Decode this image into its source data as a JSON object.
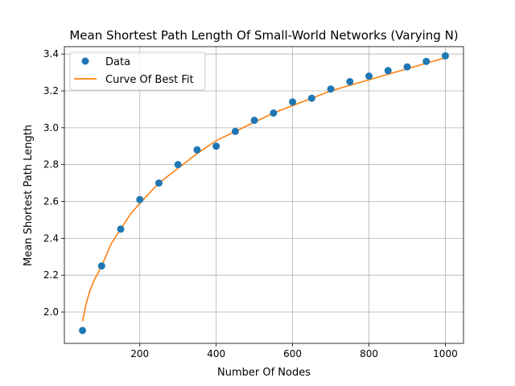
{
  "chart_data": {
    "type": "scatter",
    "title": "Mean Shortest Path Length Of Small-World Networks (Varying N)",
    "xlabel": "Number Of Nodes",
    "ylabel": "Mean Shortest Path Length",
    "xlim": [
      2.5,
      1047.5
    ],
    "ylim": [
      1.83,
      3.44
    ],
    "xticks": [
      200,
      400,
      600,
      800,
      1000
    ],
    "yticks": [
      2.0,
      2.2,
      2.4,
      2.6,
      2.8,
      3.0,
      3.2,
      3.4
    ],
    "ytick_labels": [
      "2.0",
      "2.2",
      "2.4",
      "2.6",
      "2.8",
      "3.0",
      "3.2",
      "3.4"
    ],
    "grid": true,
    "legend_position": "upper-left",
    "series": [
      {
        "name": "Data",
        "kind": "scatter",
        "color": "#1f77b4",
        "x": [
          50,
          100,
          150,
          200,
          250,
          300,
          350,
          400,
          450,
          500,
          550,
          600,
          650,
          700,
          750,
          800,
          850,
          900,
          950,
          1000
        ],
        "y": [
          1.9,
          2.25,
          2.45,
          2.61,
          2.7,
          2.8,
          2.88,
          2.9,
          2.98,
          3.04,
          3.08,
          3.14,
          3.16,
          3.21,
          3.25,
          3.28,
          3.31,
          3.33,
          3.36,
          3.39
        ]
      },
      {
        "name": "Curve Of Best Fit",
        "kind": "line",
        "color": "#ff7f0e",
        "x": [
          50,
          60,
          70,
          80,
          90,
          100,
          125,
          150,
          175,
          200,
          250,
          300,
          350,
          400,
          450,
          500,
          550,
          600,
          650,
          700,
          750,
          800,
          850,
          900,
          950,
          1000
        ],
        "y": [
          1.95,
          2.05,
          2.12,
          2.17,
          2.21,
          2.25,
          2.37,
          2.45,
          2.53,
          2.59,
          2.7,
          2.78,
          2.86,
          2.93,
          2.98,
          3.03,
          3.08,
          3.12,
          3.16,
          3.2,
          3.23,
          3.26,
          3.29,
          3.32,
          3.35,
          3.38
        ]
      }
    ]
  }
}
